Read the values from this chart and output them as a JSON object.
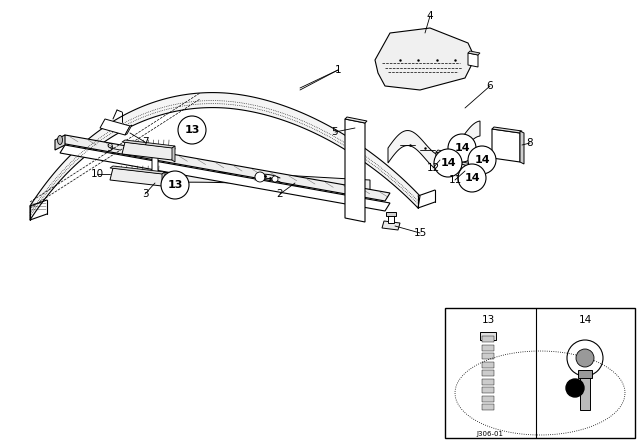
{
  "bg_color": "#ffffff",
  "fig_width": 6.4,
  "fig_height": 4.48,
  "dpi": 100,
  "lc": "#000000",
  "lw": 0.8
}
